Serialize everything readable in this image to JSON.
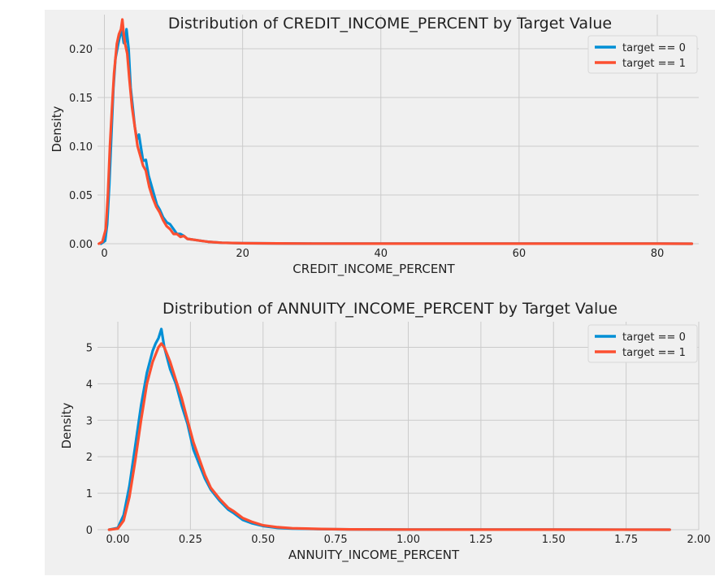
{
  "colors": {
    "figure_bg": "#f0f0f0",
    "grid": "#cbcbcb",
    "series0": "#008fd5",
    "series1": "#fc4f30"
  },
  "chart_data": [
    {
      "type": "line",
      "title": "Distribution of CREDIT_INCOME_PERCENT by Target Value",
      "xlabel": "CREDIT_INCOME_PERCENT",
      "ylabel": "Density",
      "xlim": [
        -1,
        86
      ],
      "ylim": [
        0,
        0.235
      ],
      "xticks": [
        0,
        20,
        40,
        60,
        80
      ],
      "yticks": [
        0.0,
        0.05,
        0.1,
        0.15,
        0.2
      ],
      "xtick_labels": [
        "0",
        "20",
        "40",
        "60",
        "80"
      ],
      "ytick_labels": [
        "0.00",
        "0.05",
        "0.10",
        "0.15",
        "0.20"
      ],
      "grid": true,
      "legend": "top-right",
      "series": [
        {
          "name": "target == 0",
          "color": "#008fd5",
          "x": [
            -0.5,
            0.1,
            0.4,
            0.7,
            1.0,
            1.3,
            1.6,
            2.0,
            2.3,
            2.5,
            2.8,
            3.0,
            3.2,
            3.5,
            3.8,
            4.1,
            4.4,
            4.7,
            5.0,
            5.3,
            5.6,
            6.0,
            6.4,
            6.8,
            7.2,
            7.6,
            8.0,
            8.5,
            9.0,
            9.5,
            10.0,
            10.5,
            11.0,
            11.5,
            12,
            13,
            14,
            15,
            17,
            20,
            25,
            30,
            40,
            50,
            60,
            70,
            80,
            85
          ],
          "y": [
            0.0,
            0.003,
            0.02,
            0.06,
            0.11,
            0.16,
            0.19,
            0.205,
            0.215,
            0.22,
            0.206,
            0.205,
            0.22,
            0.2,
            0.16,
            0.14,
            0.12,
            0.107,
            0.112,
            0.098,
            0.085,
            0.086,
            0.07,
            0.06,
            0.05,
            0.04,
            0.035,
            0.027,
            0.022,
            0.02,
            0.015,
            0.01,
            0.01,
            0.008,
            0.005,
            0.004,
            0.003,
            0.002,
            0.001,
            0.0005,
            0.0003,
            0.0002,
            0.0001,
            0.0001,
            0.0001,
            0.0001,
            0.0001,
            0.0
          ]
        },
        {
          "name": "target == 1",
          "color": "#fc4f30",
          "x": [
            -0.8,
            -0.3,
            0.2,
            0.5,
            0.8,
            1.1,
            1.4,
            1.8,
            2.1,
            2.4,
            2.6,
            2.8,
            3.0,
            3.3,
            3.6,
            4.0,
            4.4,
            4.8,
            5.2,
            5.6,
            6.0,
            6.5,
            7.0,
            7.5,
            8.0,
            8.5,
            9.0,
            9.5,
            10.0,
            10.5,
            11.0,
            11.5,
            12,
            13,
            14,
            15,
            17,
            20,
            25,
            30,
            40,
            50,
            60,
            70,
            80,
            85
          ],
          "y": [
            0.0,
            0.002,
            0.015,
            0.05,
            0.1,
            0.14,
            0.175,
            0.205,
            0.215,
            0.22,
            0.23,
            0.215,
            0.205,
            0.195,
            0.17,
            0.14,
            0.12,
            0.1,
            0.09,
            0.08,
            0.075,
            0.058,
            0.047,
            0.038,
            0.032,
            0.024,
            0.018,
            0.015,
            0.01,
            0.01,
            0.007,
            0.008,
            0.005,
            0.004,
            0.003,
            0.002,
            0.001,
            0.0005,
            0.0003,
            0.0002,
            0.0001,
            0.0001,
            0.0001,
            0.0001,
            0.0001,
            0.0
          ]
        }
      ]
    },
    {
      "type": "line",
      "title": "Distribution of ANNUITY_INCOME_PERCENT by Target Value",
      "xlabel": "ANNUITY_INCOME_PERCENT",
      "ylabel": "Density",
      "xlim": [
        -0.07,
        2.0
      ],
      "ylim": [
        0,
        5.7
      ],
      "xticks": [
        0.0,
        0.25,
        0.5,
        0.75,
        1.0,
        1.25,
        1.5,
        1.75,
        2.0
      ],
      "yticks": [
        0,
        1,
        2,
        3,
        4,
        5
      ],
      "xtick_labels": [
        "0.00",
        "0.25",
        "0.50",
        "0.75",
        "1.00",
        "1.25",
        "1.50",
        "1.75",
        "2.00"
      ],
      "ytick_labels": [
        "0",
        "1",
        "2",
        "3",
        "4",
        "5"
      ],
      "grid": true,
      "legend": "top-right",
      "series": [
        {
          "name": "target == 0",
          "color": "#008fd5",
          "x": [
            -0.03,
            0.0,
            0.02,
            0.04,
            0.06,
            0.08,
            0.1,
            0.12,
            0.13,
            0.14,
            0.15,
            0.16,
            0.18,
            0.2,
            0.22,
            0.24,
            0.26,
            0.28,
            0.3,
            0.32,
            0.35,
            0.38,
            0.4,
            0.43,
            0.46,
            0.5,
            0.55,
            0.6,
            0.7,
            0.8,
            1.0,
            1.2,
            1.5,
            1.9
          ],
          "y": [
            0.0,
            0.05,
            0.4,
            1.2,
            2.3,
            3.4,
            4.3,
            4.9,
            5.1,
            5.25,
            5.5,
            5.0,
            4.4,
            4.0,
            3.4,
            2.9,
            2.2,
            1.8,
            1.4,
            1.1,
            0.8,
            0.55,
            0.45,
            0.27,
            0.18,
            0.1,
            0.05,
            0.03,
            0.015,
            0.01,
            0.005,
            0.003,
            0.002,
            0.0
          ]
        },
        {
          "name": "target == 1",
          "color": "#fc4f30",
          "x": [
            -0.03,
            0.0,
            0.02,
            0.04,
            0.06,
            0.08,
            0.1,
            0.12,
            0.14,
            0.15,
            0.16,
            0.18,
            0.2,
            0.22,
            0.24,
            0.26,
            0.28,
            0.3,
            0.32,
            0.35,
            0.38,
            0.4,
            0.43,
            0.46,
            0.5,
            0.55,
            0.6,
            0.7,
            0.8,
            1.0,
            1.2,
            1.5,
            1.9
          ],
          "y": [
            0.0,
            0.03,
            0.25,
            0.9,
            1.9,
            3.0,
            4.0,
            4.6,
            5.0,
            5.1,
            5.0,
            4.6,
            4.1,
            3.6,
            3.0,
            2.4,
            1.95,
            1.5,
            1.15,
            0.85,
            0.6,
            0.5,
            0.32,
            0.22,
            0.12,
            0.07,
            0.04,
            0.02,
            0.01,
            0.005,
            0.003,
            0.002,
            0.0
          ]
        }
      ]
    }
  ]
}
